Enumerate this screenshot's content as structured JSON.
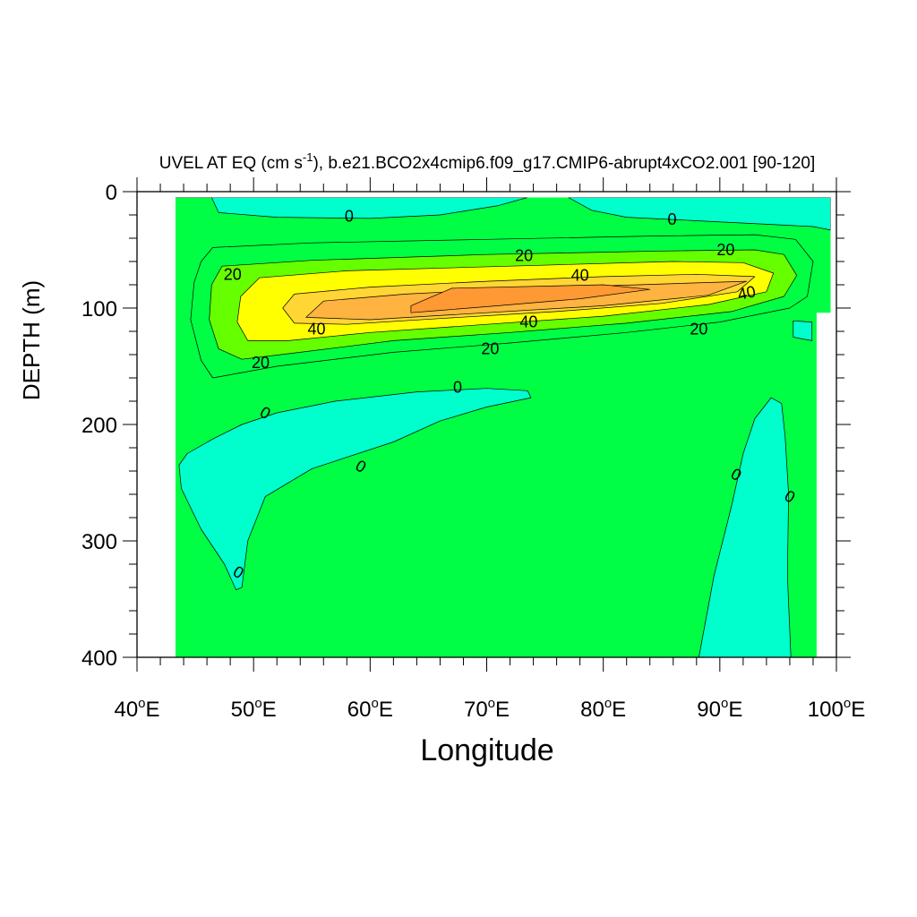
{
  "chart_data": {
    "type": "heatmap",
    "subtype": "filled-contour",
    "title": {
      "prefix": "UVEL AT EQ (cm s",
      "superscript": "-1",
      "suffix": "), b.e21.BCO2x4cmip6.f09_g17.CMIP6-abrupt4xCO2.001 [90-120]"
    },
    "xlabel": "Longitude",
    "ylabel": "DEPTH (m)",
    "xlim": [
      40,
      100
    ],
    "ylim": [
      0,
      400
    ],
    "y_inverted": true,
    "x_ticks": [
      {
        "value": 40,
        "label": "40",
        "suffix": "E"
      },
      {
        "value": 50,
        "label": "50",
        "suffix": "E"
      },
      {
        "value": 60,
        "label": "60",
        "suffix": "E"
      },
      {
        "value": 70,
        "label": "70",
        "suffix": "E"
      },
      {
        "value": 80,
        "label": "80",
        "suffix": "E"
      },
      {
        "value": 90,
        "label": "90",
        "suffix": "E"
      },
      {
        "value": 100,
        "label": "100",
        "suffix": "E"
      }
    ],
    "y_ticks": [
      {
        "value": 0,
        "label": "0"
      },
      {
        "value": 100,
        "label": "100"
      },
      {
        "value": 200,
        "label": "200"
      },
      {
        "value": 300,
        "label": "300"
      },
      {
        "value": 400,
        "label": "400"
      }
    ],
    "x_minor_step": 2,
    "y_minor_step": 20,
    "grid": false,
    "colors": {
      "below_0": "#00ffcc",
      "0_to_10": "#00ff44",
      "10_to_20": "#66ff00",
      "20_to_30": "#ffff00",
      "30_to_40": "#ffd633",
      "40_to_50": "#ffb340",
      "above_50": "#ff9933",
      "missing": "#ffffff"
    },
    "data_domain": {
      "lon_min": 43.3,
      "lon_max": 99.5
    },
    "regions": [
      {
        "name": "easterly-surface-west",
        "level": "below_0",
        "points": [
          [
            43.3,
            5
          ],
          [
            46.4,
            5
          ],
          [
            47,
            18
          ],
          [
            52,
            22
          ],
          [
            60,
            23
          ],
          [
            66,
            20
          ],
          [
            71,
            12
          ],
          [
            73.5,
            5
          ]
        ]
      },
      {
        "name": "easterly-surface-east",
        "level": "below_0",
        "points": [
          [
            77,
            5
          ],
          [
            99.5,
            5
          ],
          [
            99.5,
            33
          ],
          [
            98,
            30
          ],
          [
            94,
            28
          ],
          [
            88,
            25
          ],
          [
            82,
            22
          ],
          [
            79,
            16
          ]
        ]
      },
      {
        "name": "jet-10",
        "level": "0_to_10",
        "points": [
          [
            45.5,
            145
          ],
          [
            44.6,
            110
          ],
          [
            44.9,
            78
          ],
          [
            45.5,
            60
          ],
          [
            46.5,
            48
          ],
          [
            55,
            44
          ],
          [
            70,
            41
          ],
          [
            85,
            38
          ],
          [
            93,
            37
          ],
          [
            96.5,
            41
          ],
          [
            98,
            60
          ],
          [
            97.5,
            90
          ],
          [
            96,
            100
          ],
          [
            90,
            112
          ],
          [
            82,
            121
          ],
          [
            72,
            130
          ],
          [
            62,
            138
          ],
          [
            52,
            150
          ],
          [
            46.5,
            160
          ]
        ]
      },
      {
        "name": "jet-20",
        "level": "10_to_20",
        "points": [
          [
            47,
            135
          ],
          [
            46.2,
            110
          ],
          [
            46.4,
            80
          ],
          [
            47.3,
            64
          ],
          [
            55,
            59
          ],
          [
            70,
            54
          ],
          [
            85,
            51
          ],
          [
            93,
            50
          ],
          [
            95.5,
            54
          ],
          [
            96.6,
            72
          ],
          [
            95.5,
            90
          ],
          [
            91,
            103
          ],
          [
            82,
            113
          ],
          [
            72,
            121
          ],
          [
            62,
            128
          ],
          [
            54,
            138
          ],
          [
            49,
            144
          ]
        ]
      },
      {
        "name": "jet-30",
        "level": "20_to_30",
        "points": [
          [
            49.5,
            128
          ],
          [
            48.6,
            112
          ],
          [
            48.9,
            90
          ],
          [
            50.5,
            74
          ],
          [
            58,
            68
          ],
          [
            72,
            64
          ],
          [
            86,
            60
          ],
          [
            92,
            61
          ],
          [
            94.6,
            70
          ],
          [
            94,
            86
          ],
          [
            89,
            97
          ],
          [
            80,
            107
          ],
          [
            70,
            114
          ],
          [
            60,
            121
          ],
          [
            53,
            128
          ]
        ]
      },
      {
        "name": "jet-40",
        "level": "30_to_40",
        "points": [
          [
            53.5,
            113
          ],
          [
            52.5,
            100
          ],
          [
            53.5,
            88
          ],
          [
            60,
            82
          ],
          [
            70,
            77
          ],
          [
            80,
            73
          ],
          [
            88,
            71
          ],
          [
            93,
            73
          ],
          [
            91.5,
            86
          ],
          [
            85,
            96
          ],
          [
            76,
            103
          ],
          [
            66,
            109
          ],
          [
            58,
            114
          ]
        ]
      },
      {
        "name": "jet-50",
        "level": "40_to_50",
        "points": [
          [
            54.5,
            108
          ],
          [
            56,
            94
          ],
          [
            63,
            88
          ],
          [
            73,
            83
          ],
          [
            83,
            80
          ],
          [
            92.3,
            77
          ],
          [
            89,
            89
          ],
          [
            80,
            98
          ],
          [
            70,
            104
          ],
          [
            60,
            110
          ]
        ]
      },
      {
        "name": "jet-core",
        "level": "above_50",
        "points": [
          [
            63.5,
            104
          ],
          [
            63.5,
            98
          ],
          [
            67,
            83
          ],
          [
            80,
            80
          ],
          [
            84,
            84
          ],
          [
            78,
            92
          ],
          [
            71,
            98
          ],
          [
            66,
            102
          ]
        ]
      },
      {
        "name": "undercurrent-west",
        "level": "below_0",
        "points": [
          [
            48.5,
            342
          ],
          [
            47.5,
            320
          ],
          [
            45.5,
            290
          ],
          [
            43.8,
            255
          ],
          [
            43.6,
            235
          ],
          [
            44.3,
            225
          ],
          [
            46.6,
            212
          ],
          [
            49,
            200
          ],
          [
            52,
            190
          ],
          [
            57,
            180
          ],
          [
            64,
            172
          ],
          [
            70,
            169
          ],
          [
            73.5,
            171
          ],
          [
            73.8,
            177
          ],
          [
            70,
            185
          ],
          [
            66,
            197
          ],
          [
            62,
            215
          ],
          [
            55,
            238
          ],
          [
            51,
            262
          ],
          [
            49.5,
            300
          ],
          [
            49,
            340
          ]
        ]
      },
      {
        "name": "undercurrent-east",
        "level": "below_0",
        "points": [
          [
            88.2,
            400
          ],
          [
            89.5,
            330
          ],
          [
            91,
            270
          ],
          [
            92,
            225
          ],
          [
            93,
            195
          ],
          [
            94.4,
            177
          ],
          [
            95.3,
            182
          ],
          [
            95.6,
            210
          ],
          [
            95.9,
            260
          ],
          [
            95.8,
            330
          ],
          [
            96.1,
            400
          ]
        ]
      },
      {
        "name": "patch-east",
        "level": "below_0",
        "points": [
          [
            96.3,
            111
          ],
          [
            97.9,
            112
          ],
          [
            97.9,
            128
          ],
          [
            96.3,
            125
          ]
        ]
      },
      {
        "name": "missing-west",
        "level": "missing",
        "points": [
          [
            40,
            0
          ],
          [
            43.3,
            0
          ],
          [
            43.3,
            400
          ],
          [
            40,
            400
          ]
        ]
      },
      {
        "name": "missing-top",
        "level": "missing",
        "points": [
          [
            43.3,
            0
          ],
          [
            100,
            0
          ],
          [
            100,
            5
          ],
          [
            43.3,
            5
          ]
        ]
      },
      {
        "name": "missing-east",
        "level": "missing",
        "points": [
          [
            98.3,
            104
          ],
          [
            100,
            104
          ],
          [
            100,
            400
          ],
          [
            98.3,
            400
          ]
        ]
      },
      {
        "name": "missing-corner",
        "level": "missing",
        "points": [
          [
            99.5,
            5
          ],
          [
            100,
            5
          ],
          [
            100,
            104
          ],
          [
            99.5,
            104
          ]
        ]
      }
    ],
    "contour_labels": [
      {
        "text": "0",
        "lon": 58.2,
        "depth": 21,
        "angle": 0
      },
      {
        "text": "0",
        "lon": 85.9,
        "depth": 24,
        "angle": 0
      },
      {
        "text": "20",
        "lon": 48.2,
        "depth": 71,
        "angle": 0
      },
      {
        "text": "20",
        "lon": 73.2,
        "depth": 55,
        "angle": 0
      },
      {
        "text": "20",
        "lon": 90.5,
        "depth": 50,
        "angle": 0
      },
      {
        "text": "40",
        "lon": 78.0,
        "depth": 72,
        "angle": 0
      },
      {
        "text": "40",
        "lon": 92.3,
        "depth": 87,
        "angle": -12
      },
      {
        "text": "40",
        "lon": 55.4,
        "depth": 118,
        "angle": 0
      },
      {
        "text": "40",
        "lon": 73.6,
        "depth": 112,
        "angle": 0
      },
      {
        "text": "20",
        "lon": 50.6,
        "depth": 147,
        "angle": 0
      },
      {
        "text": "20",
        "lon": 70.3,
        "depth": 135,
        "angle": 0
      },
      {
        "text": "20",
        "lon": 88.2,
        "depth": 118,
        "angle": 0
      },
      {
        "text": "0",
        "lon": 67.5,
        "depth": 168,
        "angle": 0
      },
      {
        "text": "0",
        "lon": 51.0,
        "depth": 190,
        "angle": 30
      },
      {
        "text": "0",
        "lon": 59.2,
        "depth": 236,
        "angle": 30
      },
      {
        "text": "0",
        "lon": 48.7,
        "depth": 327,
        "angle": 30
      },
      {
        "text": "0",
        "lon": 91.4,
        "depth": 243,
        "angle": 30
      },
      {
        "text": "0",
        "lon": 96.0,
        "depth": 262,
        "angle": 30
      }
    ]
  }
}
